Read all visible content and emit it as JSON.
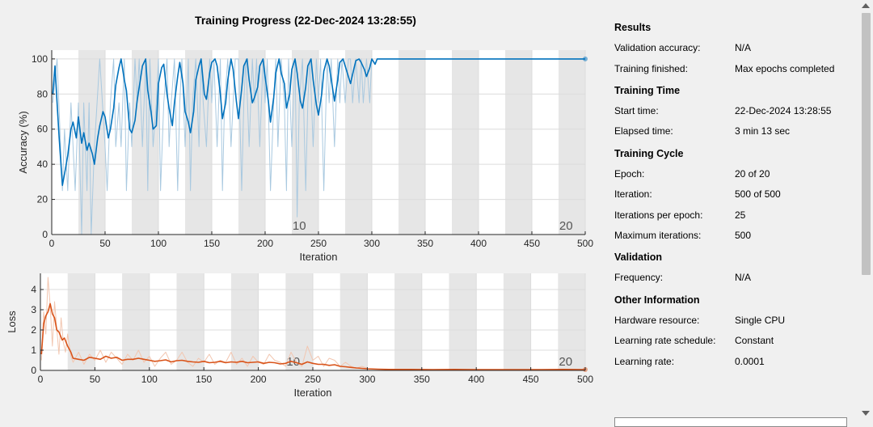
{
  "colors": {
    "accuracy_raw": "#a9c9e0",
    "accuracy_smooth": "#0072bd",
    "loss_raw": "#f2c6b0",
    "loss_smooth": "#d95319",
    "epoch_band": "#e6e6e6",
    "grid": "#dcdcdc"
  },
  "chart_data": [
    {
      "type": "line",
      "title": "Training Progress (22-Dec-2024 13:28:55)",
      "xlabel": "Iteration",
      "ylabel": "Accuracy (%)",
      "xlim": [
        0,
        500
      ],
      "ylim": [
        0,
        105
      ],
      "xticks": [
        "0",
        "50",
        "100",
        "150",
        "200",
        "250",
        "300",
        "350",
        "400",
        "450",
        "500"
      ],
      "yticks": [
        "0",
        "20",
        "40",
        "60",
        "80",
        "100"
      ],
      "grid": true,
      "epoch_labels": [
        {
          "label": "10",
          "x": 232
        },
        {
          "label": "20",
          "x": 482
        }
      ],
      "iterations_per_epoch": 25,
      "series": [
        {
          "role": "raw",
          "x": [
            1,
            5,
            10,
            12,
            15,
            18,
            20,
            22,
            25,
            28,
            30,
            33,
            35,
            37,
            40,
            45,
            50,
            52,
            55,
            58,
            60,
            63,
            65,
            68,
            70,
            73,
            75,
            78,
            80,
            82,
            85,
            88,
            90,
            92,
            95,
            98,
            100,
            102,
            105,
            108,
            110,
            112,
            115,
            118,
            120,
            122,
            125,
            128,
            130,
            132,
            135,
            138,
            140,
            142,
            145,
            148,
            150,
            152,
            155,
            158,
            160,
            162,
            165,
            168,
            170,
            172,
            175,
            178,
            180,
            182,
            185,
            188,
            190,
            192,
            195,
            198,
            200,
            202,
            205,
            208,
            210,
            212,
            215,
            218,
            220,
            222,
            225,
            228,
            230,
            232,
            235,
            238,
            240,
            242,
            245,
            248,
            250,
            252,
            255,
            258,
            260,
            262,
            265,
            268,
            270,
            272,
            275,
            278,
            280,
            282,
            285,
            288,
            290,
            292,
            295,
            298,
            300
          ],
          "y": [
            75,
            100,
            25,
            60,
            25,
            75,
            50,
            25,
            75,
            0,
            75,
            25,
            75,
            0,
            50,
            100,
            50,
            25,
            75,
            100,
            50,
            75,
            50,
            100,
            25,
            75,
            50,
            100,
            75,
            100,
            50,
            100,
            25,
            100,
            50,
            75,
            100,
            25,
            75,
            100,
            50,
            75,
            100,
            25,
            75,
            100,
            50,
            100,
            25,
            75,
            100,
            50,
            100,
            75,
            50,
            100,
            75,
            100,
            50,
            100,
            25,
            75,
            100,
            50,
            75,
            100,
            100,
            25,
            75,
            100,
            50,
            100,
            75,
            100,
            50,
            100,
            75,
            100,
            25,
            75,
            100,
            50,
            100,
            75,
            25,
            100,
            50,
            100,
            10,
            75,
            100,
            25,
            75,
            100,
            50,
            100,
            75,
            100,
            25,
            100,
            75,
            100,
            50,
            100,
            75,
            100,
            75,
            100,
            100,
            75,
            100,
            75,
            100,
            75,
            100,
            75,
            100
          ],
          "note_x_end": 300
        },
        {
          "role": "smoothed",
          "x": [
            1,
            3,
            5,
            7,
            10,
            13,
            15,
            18,
            20,
            23,
            25,
            28,
            30,
            33,
            35,
            38,
            40,
            43,
            45,
            48,
            50,
            53,
            55,
            58,
            60,
            63,
            65,
            68,
            70,
            73,
            75,
            78,
            80,
            83,
            85,
            88,
            90,
            93,
            95,
            98,
            100,
            103,
            105,
            108,
            110,
            113,
            115,
            118,
            120,
            123,
            125,
            128,
            130,
            133,
            135,
            138,
            140,
            143,
            145,
            148,
            150,
            153,
            155,
            158,
            160,
            163,
            165,
            168,
            170,
            173,
            175,
            178,
            180,
            183,
            185,
            188,
            190,
            193,
            195,
            198,
            200,
            203,
            205,
            208,
            210,
            213,
            215,
            218,
            220,
            223,
            225,
            228,
            230,
            233,
            235,
            238,
            240,
            243,
            245,
            248,
            250,
            253,
            255,
            258,
            260,
            263,
            265,
            268,
            270,
            273,
            275,
            278,
            280,
            283,
            285,
            288,
            290,
            293,
            295,
            298,
            300,
            303,
            305,
            310,
            320,
            350,
            400,
            450,
            500
          ],
          "y": [
            80,
            96,
            75,
            55,
            28,
            38,
            45,
            60,
            64,
            55,
            67,
            52,
            58,
            48,
            52,
            46,
            40,
            55,
            62,
            70,
            67,
            55,
            60,
            72,
            85,
            95,
            100,
            88,
            82,
            60,
            58,
            65,
            76,
            88,
            96,
            100,
            82,
            70,
            60,
            62,
            86,
            95,
            97,
            80,
            72,
            62,
            75,
            90,
            98,
            86,
            70,
            64,
            58,
            70,
            88,
            96,
            100,
            80,
            77,
            92,
            98,
            100,
            96,
            80,
            66,
            75,
            88,
            100,
            94,
            76,
            66,
            83,
            96,
            100,
            88,
            75,
            78,
            84,
            96,
            100,
            90,
            76,
            64,
            78,
            92,
            100,
            92,
            86,
            72,
            80,
            94,
            100,
            92,
            76,
            72,
            84,
            96,
            100,
            88,
            74,
            68,
            80,
            93,
            100,
            96,
            84,
            76,
            88,
            98,
            100,
            96,
            90,
            86,
            94,
            99,
            100,
            98,
            94,
            90,
            95,
            100,
            97,
            100,
            100,
            100,
            100,
            100,
            100,
            100
          ]
        }
      ]
    },
    {
      "type": "line",
      "xlabel": "Iteration",
      "ylabel": "Loss",
      "xlim": [
        0,
        500
      ],
      "ylim": [
        0,
        4.8
      ],
      "xticks": [
        "0",
        "50",
        "100",
        "150",
        "200",
        "250",
        "300",
        "350",
        "400",
        "450",
        "500"
      ],
      "yticks": [
        "0",
        "1",
        "2",
        "3",
        "4"
      ],
      "grid": true,
      "epoch_labels": [
        {
          "label": "10",
          "x": 232
        },
        {
          "label": "20",
          "x": 482
        }
      ],
      "iterations_per_epoch": 25,
      "series": [
        {
          "role": "raw",
          "x": [
            1,
            3,
            5,
            7,
            9,
            11,
            13,
            15,
            17,
            19,
            21,
            23,
            25,
            28,
            30,
            35,
            40,
            45,
            50,
            55,
            60,
            65,
            70,
            75,
            80,
            85,
            90,
            95,
            100,
            105,
            110,
            115,
            120,
            125,
            130,
            135,
            140,
            145,
            150,
            155,
            160,
            165,
            170,
            175,
            180,
            185,
            190,
            195,
            200,
            205,
            210,
            215,
            220,
            225,
            230,
            235,
            240,
            245,
            250,
            255,
            260,
            265,
            270,
            275,
            280,
            285,
            290,
            295,
            300
          ],
          "y": [
            0.5,
            2.9,
            1.8,
            4.6,
            3.2,
            1.2,
            3.4,
            2.1,
            0.8,
            2.6,
            1.4,
            0.9,
            1.8,
            0.7,
            0.4,
            0.9,
            0.3,
            0.8,
            0.5,
            1.0,
            0.4,
            0.9,
            0.6,
            0.3,
            0.8,
            0.5,
            1.0,
            0.4,
            0.7,
            0.2,
            0.6,
            0.9,
            0.3,
            0.5,
            0.9,
            0.4,
            0.2,
            0.6,
            0.4,
            0.8,
            0.3,
            0.5,
            0.4,
            0.9,
            0.3,
            0.6,
            0.2,
            0.7,
            0.4,
            0.3,
            0.8,
            0.5,
            0.4,
            0.2,
            0.9,
            0.4,
            0.2,
            1.2,
            0.5,
            0.7,
            0.2,
            0.6,
            0.5,
            0.2,
            0.4,
            0.2,
            0.1,
            0.2,
            0.1
          ]
        },
        {
          "role": "smoothed",
          "x": [
            1,
            3,
            5,
            7,
            9,
            11,
            13,
            15,
            17,
            20,
            22,
            25,
            28,
            30,
            35,
            40,
            45,
            50,
            55,
            60,
            65,
            70,
            75,
            80,
            85,
            90,
            95,
            100,
            105,
            110,
            115,
            120,
            125,
            130,
            135,
            140,
            145,
            150,
            155,
            160,
            165,
            170,
            175,
            180,
            185,
            190,
            195,
            200,
            205,
            210,
            215,
            220,
            225,
            230,
            235,
            240,
            245,
            250,
            255,
            260,
            265,
            270,
            275,
            280,
            285,
            290,
            295,
            300,
            310,
            320,
            340,
            360,
            380,
            400,
            420,
            440,
            460,
            480,
            500
          ],
          "y": [
            0.8,
            2.3,
            2.7,
            2.9,
            3.3,
            2.8,
            2.6,
            2.0,
            1.9,
            1.5,
            1.6,
            1.2,
            0.9,
            0.6,
            0.55,
            0.5,
            0.65,
            0.6,
            0.55,
            0.7,
            0.6,
            0.65,
            0.5,
            0.55,
            0.55,
            0.6,
            0.55,
            0.5,
            0.45,
            0.48,
            0.52,
            0.42,
            0.48,
            0.5,
            0.45,
            0.42,
            0.4,
            0.45,
            0.38,
            0.4,
            0.45,
            0.38,
            0.42,
            0.4,
            0.45,
            0.38,
            0.4,
            0.42,
            0.35,
            0.4,
            0.38,
            0.32,
            0.35,
            0.45,
            0.38,
            0.3,
            0.42,
            0.35,
            0.3,
            0.3,
            0.25,
            0.28,
            0.2,
            0.18,
            0.15,
            0.12,
            0.1,
            0.08,
            0.06,
            0.05,
            0.05,
            0.04,
            0.05,
            0.04,
            0.04,
            0.04,
            0.04,
            0.05,
            0.04
          ]
        }
      ]
    }
  ],
  "panel": {
    "results_title": "Results",
    "validation_accuracy_label": "Validation accuracy:",
    "validation_accuracy_value": "N/A",
    "training_finished_label": "Training finished:",
    "training_finished_value": "Max epochs completed",
    "training_time_title": "Training Time",
    "start_time_label": "Start time:",
    "start_time_value": "22-Dec-2024 13:28:55",
    "elapsed_time_label": "Elapsed time:",
    "elapsed_time_value": "3 min 13 sec",
    "training_cycle_title": "Training Cycle",
    "epoch_label": "Epoch:",
    "epoch_value": "20 of 20",
    "iteration_label": "Iteration:",
    "iteration_value": "500 of 500",
    "iterations_per_epoch_label": "Iterations per epoch:",
    "iterations_per_epoch_value": "25",
    "max_iterations_label": "Maximum iterations:",
    "max_iterations_value": "500",
    "validation_title": "Validation",
    "frequency_label": "Frequency:",
    "frequency_value": "N/A",
    "other_info_title": "Other Information",
    "hardware_label": "Hardware resource:",
    "hardware_value": "Single CPU",
    "lr_schedule_label": "Learning rate schedule:",
    "lr_schedule_value": "Constant",
    "lr_label": "Learning rate:",
    "lr_value": "0.0001"
  }
}
